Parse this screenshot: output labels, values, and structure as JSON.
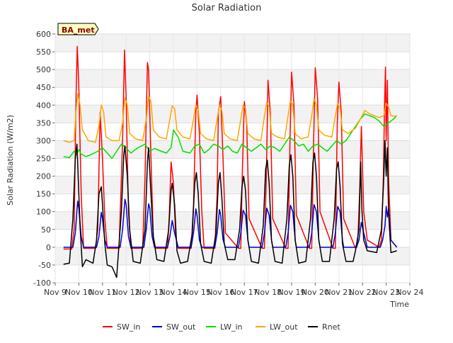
{
  "chart_data": {
    "type": "line",
    "title": "Solar Radiation",
    "xlabel": "Time",
    "ylabel": "Solar Radiation (W/m2)",
    "site_label": "BA_met",
    "xlim": [
      9,
      24
    ],
    "ylim": [
      -100,
      600
    ],
    "yticks": [
      -100,
      -50,
      0,
      50,
      100,
      150,
      200,
      250,
      300,
      350,
      400,
      450,
      500,
      550,
      600
    ],
    "xticks": [
      {
        "x": 9,
        "label": "Nov 9"
      },
      {
        "x": 10,
        "label": "Nov 10"
      },
      {
        "x": 11,
        "label": "Nov 11"
      },
      {
        "x": 12,
        "label": "Nov 12"
      },
      {
        "x": 13,
        "label": "Nov 13"
      },
      {
        "x": 14,
        "label": "Nov 14"
      },
      {
        "x": 15,
        "label": "Nov 15"
      },
      {
        "x": 16,
        "label": "Nov 16"
      },
      {
        "x": 17,
        "label": "Nov 17"
      },
      {
        "x": 18,
        "label": "Nov 18"
      },
      {
        "x": 19,
        "label": "Nov 19"
      },
      {
        "x": 20,
        "label": "Nov 20"
      },
      {
        "x": 21,
        "label": "Nov 21"
      },
      {
        "x": 22,
        "label": "Nov 22"
      },
      {
        "x": 23,
        "label": "Nov 23"
      },
      {
        "x": 24,
        "label": "Nov 24"
      }
    ],
    "grid": true,
    "legend_position": "bottom",
    "series": [
      {
        "name": "SW_in",
        "color": "#ff0000",
        "x": [
          9.35,
          9.7,
          9.8,
          9.88,
          9.93,
          10.0,
          10.1,
          10.2,
          10.7,
          10.8,
          10.9,
          11.0,
          11.1,
          11.2,
          11.7,
          11.85,
          11.93,
          12.0,
          12.1,
          12.2,
          12.7,
          12.8,
          12.9,
          12.95,
          13.05,
          13.15,
          13.25,
          13.75,
          13.82,
          13.9,
          14.0,
          14.1,
          14.2,
          14.75,
          14.85,
          14.95,
          15.0,
          15.1,
          15.2,
          15.3,
          15.75,
          15.85,
          15.9,
          16.0,
          16.1,
          16.2,
          16.75,
          16.85,
          16.92,
          17.0,
          17.1,
          17.2,
          17.75,
          17.85,
          17.93,
          18.0,
          18.1,
          18.2,
          18.75,
          18.85,
          18.93,
          19.0,
          19.1,
          19.2,
          19.75,
          19.85,
          19.93,
          20.0,
          20.1,
          20.2,
          20.75,
          20.85,
          20.93,
          21.0,
          21.1,
          21.2,
          21.7,
          21.8,
          21.88,
          21.95,
          22.05,
          22.2,
          22.7,
          22.8,
          22.88,
          22.93,
          22.97,
          23.0,
          23.05,
          23.1,
          23.2,
          23.45
        ],
        "y": [
          -5,
          -5,
          50,
          420,
          565,
          450,
          150,
          -3,
          -3,
          50,
          380,
          250,
          80,
          -3,
          -3,
          300,
          555,
          420,
          100,
          -3,
          -3,
          200,
          520,
          500,
          250,
          30,
          -3,
          -3,
          80,
          240,
          180,
          30,
          -3,
          -3,
          120,
          380,
          428,
          320,
          100,
          -3,
          -3,
          150,
          380,
          424,
          250,
          40,
          -3,
          -3,
          220,
          410,
          350,
          80,
          -3,
          -3,
          200,
          470,
          380,
          80,
          -3,
          -3,
          300,
          493,
          400,
          90,
          -3,
          -3,
          300,
          505,
          420,
          100,
          -3,
          -3,
          350,
          465,
          380,
          80,
          -3,
          20,
          160,
          340,
          100,
          20,
          0,
          20,
          195,
          400,
          507,
          300,
          470,
          200,
          20,
          0
        ]
      },
      {
        "name": "SW_out",
        "color": "#0000cc",
        "x": [
          9.35,
          9.75,
          9.85,
          9.95,
          10.0,
          10.1,
          10.2,
          10.75,
          10.85,
          10.95,
          11.0,
          11.1,
          11.2,
          11.75,
          11.85,
          11.95,
          12.0,
          12.1,
          12.2,
          12.75,
          12.85,
          12.95,
          13.0,
          13.1,
          13.2,
          13.75,
          13.85,
          13.95,
          14.05,
          14.2,
          14.75,
          14.85,
          14.95,
          15.0,
          15.1,
          15.2,
          15.75,
          15.85,
          15.95,
          16.0,
          16.1,
          16.2,
          16.75,
          16.85,
          16.95,
          17.05,
          17.15,
          17.2,
          17.75,
          17.85,
          17.95,
          18.05,
          18.15,
          18.2,
          18.75,
          18.85,
          18.95,
          19.05,
          19.15,
          19.2,
          19.75,
          19.85,
          19.95,
          20.05,
          20.15,
          20.2,
          20.75,
          20.85,
          20.95,
          21.05,
          21.15,
          21.2,
          21.75,
          21.85,
          21.95,
          22.05,
          22.2,
          22.75,
          22.85,
          22.95,
          23.0,
          23.05,
          23.1,
          23.2,
          23.45
        ],
        "y": [
          0,
          0,
          40,
          130,
          110,
          30,
          0,
          0,
          30,
          98,
          80,
          20,
          0,
          0,
          50,
          135,
          120,
          30,
          0,
          0,
          50,
          122,
          110,
          30,
          0,
          0,
          30,
          75,
          40,
          0,
          0,
          40,
          108,
          90,
          20,
          0,
          0,
          40,
          106,
          90,
          20,
          0,
          0,
          40,
          104,
          90,
          20,
          0,
          0,
          40,
          110,
          90,
          20,
          0,
          0,
          40,
          118,
          100,
          20,
          0,
          0,
          40,
          120,
          100,
          20,
          0,
          0,
          40,
          115,
          100,
          20,
          0,
          0,
          20,
          70,
          40,
          0,
          0,
          20,
          60,
          115,
          85,
          110,
          20,
          0
        ]
      },
      {
        "name": "LW_in",
        "color": "#00e000",
        "x": [
          9.35,
          9.6,
          9.8,
          9.9,
          10.0,
          10.1,
          10.3,
          10.5,
          10.8,
          11.0,
          11.2,
          11.4,
          11.6,
          11.8,
          12.0,
          12.2,
          12.5,
          12.8,
          13.0,
          13.2,
          13.5,
          13.7,
          13.9,
          14.0,
          14.2,
          14.4,
          14.7,
          14.9,
          15.1,
          15.3,
          15.5,
          15.7,
          15.9,
          16.1,
          16.3,
          16.5,
          16.7,
          16.9,
          17.1,
          17.3,
          17.5,
          17.7,
          17.9,
          18.1,
          18.3,
          18.5,
          18.7,
          18.9,
          19.1,
          19.3,
          19.5,
          19.7,
          19.9,
          20.1,
          20.3,
          20.5,
          20.7,
          20.9,
          21.1,
          21.3,
          21.5,
          21.7,
          21.9,
          22.1,
          22.3,
          22.5,
          22.7,
          22.9,
          23.1,
          23.3,
          23.45
        ],
        "y": [
          255,
          252,
          270,
          260,
          275,
          262,
          255,
          260,
          270,
          280,
          265,
          250,
          270,
          290,
          280,
          265,
          280,
          290,
          270,
          278,
          270,
          265,
          280,
          330,
          310,
          270,
          265,
          285,
          290,
          265,
          275,
          290,
          285,
          275,
          285,
          270,
          265,
          290,
          280,
          270,
          280,
          290,
          275,
          285,
          280,
          270,
          290,
          310,
          300,
          285,
          290,
          270,
          285,
          290,
          280,
          270,
          285,
          300,
          290,
          300,
          320,
          340,
          360,
          375,
          370,
          365,
          355,
          340,
          350,
          360,
          370
        ]
      },
      {
        "name": "LW_out",
        "color": "#ffa500",
        "x": [
          9.35,
          9.6,
          9.8,
          9.88,
          9.95,
          10.05,
          10.15,
          10.4,
          10.7,
          10.85,
          10.95,
          11.05,
          11.15,
          11.4,
          11.7,
          11.85,
          11.95,
          12.05,
          12.15,
          12.4,
          12.7,
          12.85,
          12.95,
          13.05,
          13.15,
          13.4,
          13.7,
          13.85,
          13.95,
          14.05,
          14.15,
          14.4,
          14.7,
          14.85,
          14.95,
          15.05,
          15.15,
          15.4,
          15.7,
          15.85,
          15.95,
          16.05,
          16.15,
          16.4,
          16.7,
          16.85,
          16.95,
          17.05,
          17.15,
          17.4,
          17.7,
          17.85,
          17.95,
          18.05,
          18.15,
          18.4,
          18.7,
          18.85,
          18.95,
          19.05,
          19.15,
          19.4,
          19.7,
          19.85,
          19.95,
          20.05,
          20.15,
          20.4,
          20.7,
          20.85,
          20.95,
          21.05,
          21.15,
          21.4,
          21.7,
          21.9,
          22.1,
          22.3,
          22.5,
          22.7,
          22.9,
          23.0,
          23.1,
          23.2,
          23.45
        ],
        "y": [
          300,
          295,
          300,
          380,
          432,
          400,
          330,
          300,
          295,
          340,
          400,
          380,
          310,
          300,
          300,
          350,
          420,
          400,
          320,
          305,
          300,
          360,
          425,
          410,
          330,
          310,
          305,
          360,
          398,
          390,
          330,
          310,
          305,
          360,
          400,
          385,
          320,
          305,
          300,
          360,
          400,
          385,
          320,
          305,
          300,
          360,
          400,
          390,
          320,
          305,
          300,
          370,
          408,
          395,
          320,
          310,
          305,
          370,
          412,
          400,
          320,
          305,
          310,
          370,
          418,
          400,
          330,
          315,
          310,
          370,
          405,
          390,
          330,
          320,
          335,
          360,
          385,
          375,
          370,
          365,
          370,
          405,
          395,
          370,
          368
        ]
      },
      {
        "name": "Rnet",
        "color": "#000000",
        "x": [
          9.35,
          9.6,
          9.75,
          9.85,
          9.92,
          9.97,
          10.05,
          10.15,
          10.3,
          10.6,
          10.75,
          10.85,
          10.95,
          11.0,
          11.1,
          11.2,
          11.4,
          11.6,
          11.8,
          11.9,
          11.95,
          12.05,
          12.15,
          12.3,
          12.6,
          12.8,
          12.9,
          12.95,
          13.05,
          13.15,
          13.3,
          13.6,
          13.8,
          13.9,
          13.95,
          14.05,
          14.15,
          14.3,
          14.6,
          14.8,
          14.9,
          14.97,
          15.05,
          15.15,
          15.3,
          15.6,
          15.8,
          15.9,
          15.97,
          16.05,
          16.15,
          16.3,
          16.6,
          16.8,
          16.9,
          16.97,
          17.05,
          17.15,
          17.3,
          17.6,
          17.8,
          17.9,
          17.97,
          18.05,
          18.15,
          18.3,
          18.6,
          18.8,
          18.9,
          18.97,
          19.05,
          19.15,
          19.3,
          19.6,
          19.8,
          19.9,
          19.97,
          20.05,
          20.15,
          20.3,
          20.6,
          20.8,
          20.9,
          20.97,
          21.05,
          21.15,
          21.3,
          21.6,
          21.7,
          21.85,
          21.92,
          21.97,
          22.05,
          22.2,
          22.6,
          22.8,
          22.9,
          22.95,
          23.0,
          23.05,
          23.1,
          23.2,
          23.45
        ],
        "y": [
          -48,
          -45,
          80,
          250,
          290,
          200,
          60,
          -55,
          -35,
          -45,
          20,
          150,
          170,
          120,
          10,
          -50,
          -55,
          -85,
          100,
          260,
          285,
          200,
          50,
          -40,
          -45,
          50,
          240,
          280,
          150,
          30,
          -35,
          -40,
          50,
          160,
          180,
          120,
          -10,
          -45,
          -40,
          40,
          180,
          210,
          150,
          10,
          -40,
          -45,
          40,
          180,
          210,
          140,
          10,
          -35,
          -35,
          50,
          170,
          200,
          160,
          20,
          -40,
          -45,
          60,
          220,
          245,
          180,
          20,
          -40,
          -45,
          80,
          230,
          260,
          200,
          20,
          -45,
          -40,
          80,
          240,
          265,
          200,
          20,
          -40,
          -40,
          80,
          220,
          240,
          170,
          10,
          -40,
          -40,
          -10,
          50,
          240,
          110,
          20,
          -10,
          -15,
          50,
          200,
          300,
          200,
          280,
          100,
          -15,
          -10
        ]
      }
    ]
  }
}
